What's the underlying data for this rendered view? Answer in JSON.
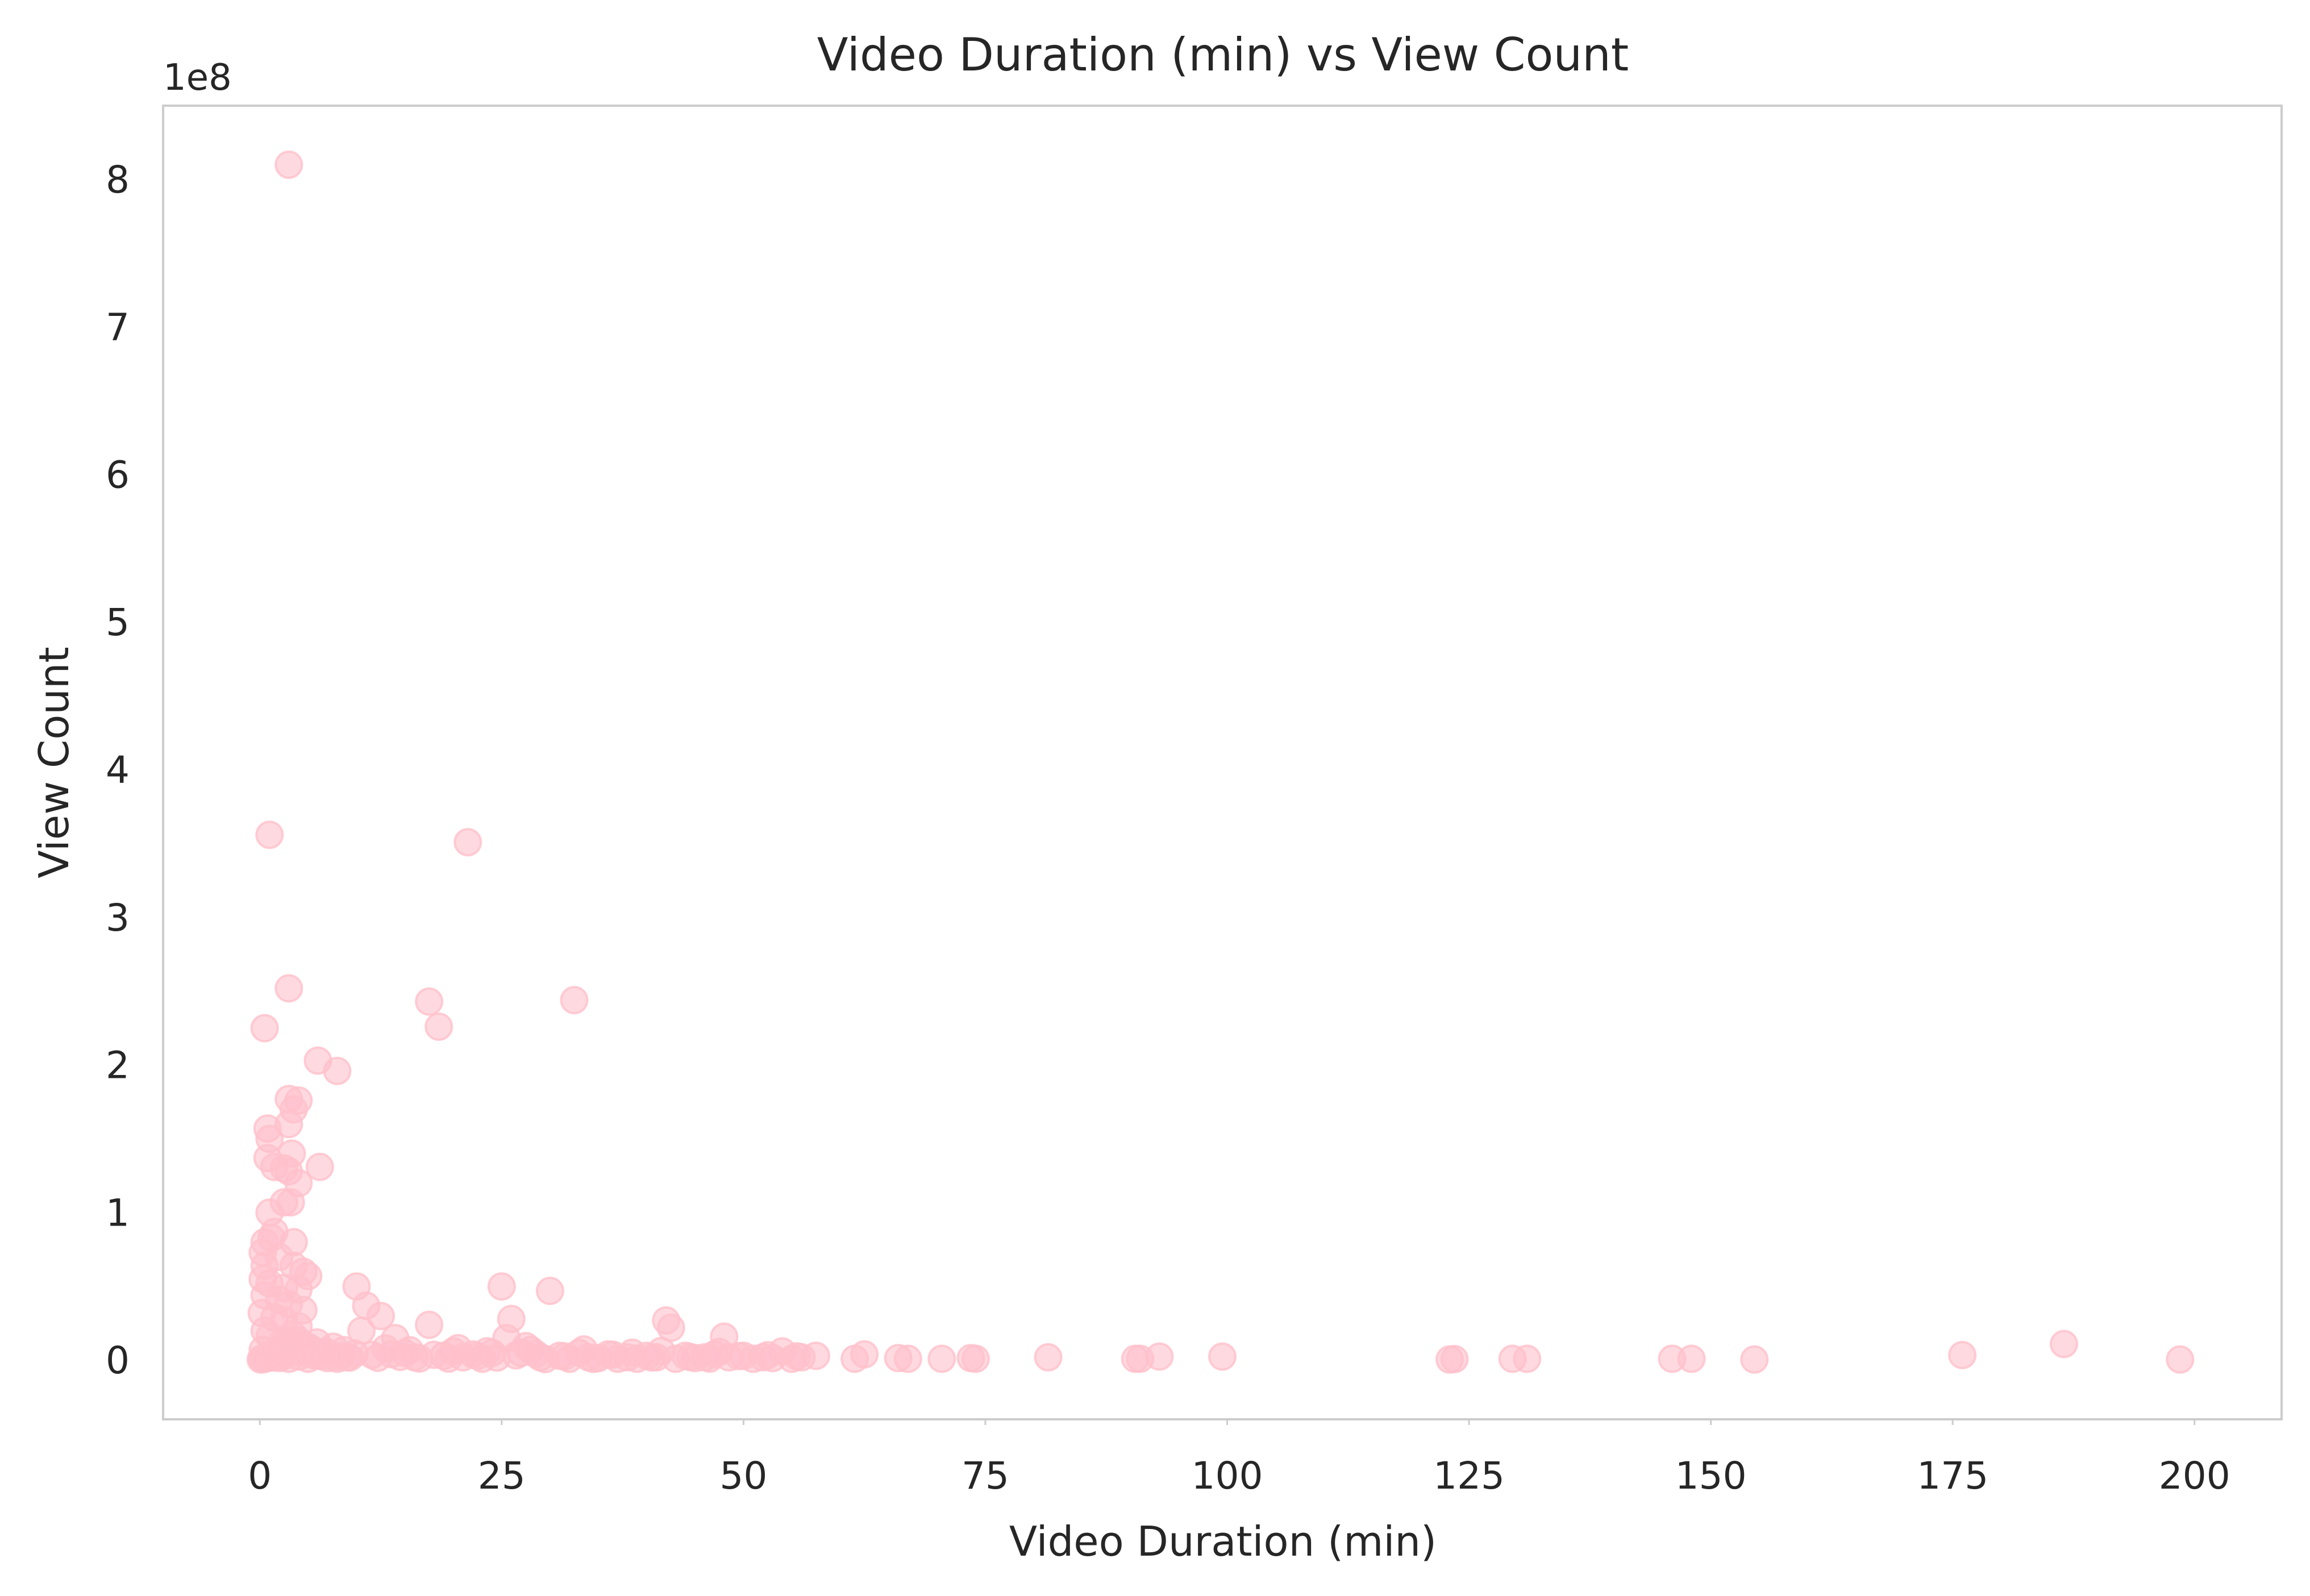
{
  "chart_data": {
    "type": "scatter",
    "title": "Video Duration (min) vs View Count",
    "xlabel": "Video Duration (min)",
    "ylabel": "View Count",
    "y_offset_label": "1e8",
    "xlim": [
      -10,
      209
    ],
    "ylim": [
      -40000000,
      850000000
    ],
    "x_ticks": [
      0,
      25,
      50,
      75,
      100,
      125,
      150,
      175,
      200
    ],
    "x_tick_labels": [
      "0",
      "25",
      "50",
      "75",
      "100",
      "125",
      "150",
      "175",
      "200"
    ],
    "y_ticks": [
      0,
      100000000,
      200000000,
      300000000,
      400000000,
      500000000,
      600000000,
      700000000,
      800000000
    ],
    "y_tick_labels": [
      "0",
      "1",
      "2",
      "3",
      "4",
      "5",
      "6",
      "7",
      "8"
    ],
    "grid": false,
    "legend": "none",
    "marker_color": "#ffc0cb",
    "marker_opacity": 0.6,
    "series": [
      {
        "points": [
          [
            3.0,
            810000000
          ],
          [
            1.0,
            356000000
          ],
          [
            21.5,
            351000000
          ],
          [
            0.5,
            225000000
          ],
          [
            3.0,
            252000000
          ],
          [
            17.5,
            243000000
          ],
          [
            32.5,
            244000000
          ],
          [
            18.5,
            226000000
          ],
          [
            6.0,
            203000000
          ],
          [
            8.0,
            196000000
          ],
          [
            3.0,
            177000000
          ],
          [
            4.0,
            176000000
          ],
          [
            3.5,
            170000000
          ],
          [
            3.0,
            160000000
          ],
          [
            0.8,
            157000000
          ],
          [
            1.0,
            150000000
          ],
          [
            0.8,
            137000000
          ],
          [
            3.3,
            140000000
          ],
          [
            1.5,
            131000000
          ],
          [
            2.5,
            130000000
          ],
          [
            3.0,
            128000000
          ],
          [
            6.2,
            131000000
          ],
          [
            4.0,
            120000000
          ],
          [
            2.5,
            107000000
          ],
          [
            3.2,
            107000000
          ],
          [
            1.0,
            100000000
          ],
          [
            1.5,
            87000000
          ],
          [
            1.2,
            83000000
          ],
          [
            0.5,
            80000000
          ],
          [
            3.5,
            80000000
          ],
          [
            0.3,
            73000000
          ],
          [
            2.0,
            70000000
          ],
          [
            0.5,
            64000000
          ],
          [
            3.5,
            64000000
          ],
          [
            4.5,
            60000000
          ],
          [
            5.0,
            57000000
          ],
          [
            0.3,
            55000000
          ],
          [
            1.0,
            52000000
          ],
          [
            2.5,
            49000000
          ],
          [
            4.0,
            48000000
          ],
          [
            0.5,
            44000000
          ],
          [
            2.0,
            41000000
          ],
          [
            3.0,
            38000000
          ],
          [
            4.5,
            34000000
          ],
          [
            0.2,
            32000000
          ],
          [
            1.5,
            29000000
          ],
          [
            2.5,
            27000000
          ],
          [
            4.0,
            23000000
          ],
          [
            0.5,
            20000000
          ],
          [
            1.0,
            16000000
          ],
          [
            2.5,
            14000000
          ],
          [
            3.5,
            12000000
          ],
          [
            5.0,
            9000000
          ],
          [
            0.3,
            7000000
          ],
          [
            1.5,
            5000000
          ],
          [
            2.5,
            3000000
          ],
          [
            0.5,
            1000000
          ],
          [
            1.0,
            2000000
          ],
          [
            2.0,
            1500000
          ],
          [
            3.0,
            1000000
          ],
          [
            4.0,
            2500000
          ],
          [
            5.0,
            1000000
          ],
          [
            6.0,
            3000000
          ],
          [
            7.0,
            1500000
          ],
          [
            8.0,
            1000000
          ],
          [
            9.0,
            2000000
          ],
          [
            10.0,
            50000000
          ],
          [
            11.0,
            37000000
          ],
          [
            12.5,
            30000000
          ],
          [
            14.0,
            15000000
          ],
          [
            10.5,
            20000000
          ],
          [
            13.0,
            8000000
          ],
          [
            15.0,
            5000000
          ],
          [
            16.0,
            2000000
          ],
          [
            17.5,
            24000000
          ],
          [
            19.0,
            3000000
          ],
          [
            20.0,
            6000000
          ],
          [
            21.0,
            2000000
          ],
          [
            22.0,
            4000000
          ],
          [
            23.0,
            1000000
          ],
          [
            24.0,
            5000000
          ],
          [
            25.0,
            50000000
          ],
          [
            26.0,
            28000000
          ],
          [
            25.5,
            15000000
          ],
          [
            27.0,
            5000000
          ],
          [
            28.0,
            7000000
          ],
          [
            29.0,
            2000000
          ],
          [
            30.0,
            47000000
          ],
          [
            31.0,
            3000000
          ],
          [
            32.0,
            1000000
          ],
          [
            33.0,
            5000000
          ],
          [
            34.0,
            2000000
          ],
          [
            35.0,
            1500000
          ],
          [
            36.0,
            4000000
          ],
          [
            37.0,
            1000000
          ],
          [
            38.0,
            2000000
          ],
          [
            39.0,
            1000000
          ],
          [
            40.0,
            3000000
          ],
          [
            41.0,
            2000000
          ],
          [
            42.0,
            27000000
          ],
          [
            42.5,
            22000000
          ],
          [
            43.0,
            1000000
          ],
          [
            44.0,
            3000000
          ],
          [
            45.0,
            1500000
          ],
          [
            46.0,
            2000000
          ],
          [
            47.0,
            4000000
          ],
          [
            48.0,
            16000000
          ],
          [
            48.5,
            2000000
          ],
          [
            50.0,
            3000000
          ],
          [
            51.0,
            1000000
          ],
          [
            52.0,
            2000000
          ],
          [
            53.0,
            1500000
          ],
          [
            54.0,
            6000000
          ],
          [
            55.0,
            1000000
          ],
          [
            56.0,
            2000000
          ],
          [
            57.5,
            3000000
          ],
          [
            61.5,
            1000000
          ],
          [
            62.5,
            4000000
          ],
          [
            66.0,
            1500000
          ],
          [
            67.0,
            1000000
          ],
          [
            70.5,
            1000000
          ],
          [
            73.5,
            1500000
          ],
          [
            74.0,
            1000000
          ],
          [
            81.5,
            2000000
          ],
          [
            90.5,
            1000000
          ],
          [
            91.0,
            1000000
          ],
          [
            93.0,
            2500000
          ],
          [
            99.5,
            2500000
          ],
          [
            123.0,
            500000
          ],
          [
            123.5,
            800000
          ],
          [
            129.5,
            1000000
          ],
          [
            131.0,
            1000000
          ],
          [
            146.0,
            1000000
          ],
          [
            148.0,
            1000000
          ],
          [
            154.5,
            500000
          ],
          [
            176.0,
            3500000
          ],
          [
            186.5,
            11000000
          ],
          [
            198.5,
            500000
          ],
          [
            0.1,
            500000
          ],
          [
            0.2,
            1200000
          ],
          [
            0.4,
            900000
          ],
          [
            0.6,
            2200000
          ],
          [
            0.9,
            3100000
          ],
          [
            1.2,
            1800000
          ],
          [
            1.4,
            4200000
          ],
          [
            1.7,
            2600000
          ],
          [
            1.9,
            6400000
          ],
          [
            2.2,
            8100000
          ],
          [
            2.4,
            3300000
          ],
          [
            2.7,
            9500000
          ],
          [
            2.9,
            11500000
          ],
          [
            3.2,
            5200000
          ],
          [
            3.4,
            17500000
          ],
          [
            3.7,
            7200000
          ],
          [
            3.9,
            13800000
          ],
          [
            4.2,
            6100000
          ],
          [
            4.4,
            10400000
          ],
          [
            4.7,
            4900000
          ],
          [
            5.3,
            7700000
          ],
          [
            5.6,
            3400000
          ],
          [
            5.9,
            12100000
          ],
          [
            6.4,
            2700000
          ],
          [
            6.8,
            5800000
          ],
          [
            7.2,
            3900000
          ],
          [
            7.6,
            9200000
          ],
          [
            8.3,
            2400000
          ],
          [
            8.7,
            6900000
          ],
          [
            9.3,
            1900000
          ],
          [
            9.8,
            4600000
          ],
          [
            11.6,
            3600000
          ],
          [
            12.2,
            1700000
          ],
          [
            13.6,
            4100000
          ],
          [
            14.5,
            2300000
          ],
          [
            15.5,
            6800000
          ],
          [
            16.5,
            1200000
          ],
          [
            18.0,
            3700000
          ],
          [
            19.5,
            1100000
          ],
          [
            20.5,
            8200000
          ],
          [
            22.5,
            2900000
          ],
          [
            23.5,
            6100000
          ],
          [
            24.5,
            1800000
          ],
          [
            26.5,
            3300000
          ],
          [
            27.5,
            9600000
          ],
          [
            28.5,
            4400000
          ],
          [
            29.5,
            800000
          ],
          [
            31.5,
            2600000
          ],
          [
            33.5,
            7300000
          ],
          [
            34.5,
            900000
          ],
          [
            36.5,
            3800000
          ],
          [
            38.5,
            5100000
          ],
          [
            40.5,
            1900000
          ],
          [
            41.5,
            6300000
          ],
          [
            44.5,
            2200000
          ],
          [
            46.5,
            1100000
          ],
          [
            47.5,
            5600000
          ],
          [
            49.5,
            2800000
          ],
          [
            52.5,
            3400000
          ],
          [
            55.5,
            2700000
          ]
        ]
      }
    ]
  }
}
